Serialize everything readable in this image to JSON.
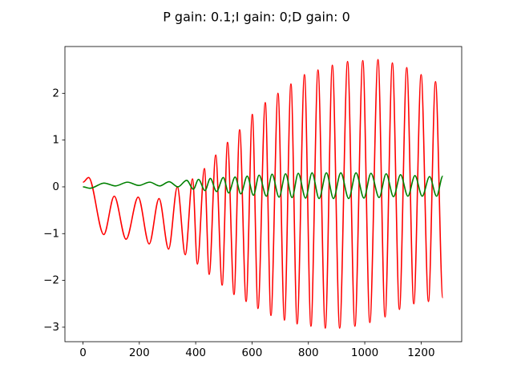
{
  "chart_data": {
    "type": "line",
    "title": "P gain: 0.1;I gain: 0;D gain: 0",
    "xlim": [
      -64,
      1344
    ],
    "ylim": [
      -3.31,
      3.0
    ],
    "xticks": [
      0,
      200,
      400,
      600,
      800,
      1000,
      1200
    ],
    "yticks": [
      {
        "value": -3,
        "label": "−3"
      },
      {
        "value": -2,
        "label": "−2"
      },
      {
        "value": -1,
        "label": "−1"
      },
      0,
      1,
      2
    ],
    "series": [
      {
        "color": "#ff0000",
        "x": [
          0,
          20,
          74,
          111,
          153,
          196,
          235,
          270,
          304,
          335,
          363,
          389,
          406,
          431,
          448,
          471,
          494,
          513,
          536,
          556,
          579,
          601,
          621,
          647,
          667,
          692,
          715,
          738,
          760,
          786,
          809,
          834,
          860,
          885,
          911,
          939,
          965,
          993,
          1018,
          1047,
          1072,
          1098,
          1123,
          1149,
          1174,
          1200,
          1226,
          1251,
          1277
        ],
        "values": [
          0.1,
          0.2,
          -1.02,
          -0.2,
          -1.12,
          -0.22,
          -1.22,
          -0.25,
          -1.33,
          0.0,
          -1.45,
          0.17,
          -1.65,
          0.39,
          -1.87,
          0.68,
          -2.1,
          0.95,
          -2.3,
          1.22,
          -2.45,
          1.55,
          -2.6,
          1.8,
          -2.75,
          2.0,
          -2.85,
          2.2,
          -2.93,
          2.4,
          -2.98,
          2.5,
          -3.02,
          2.6,
          -3.02,
          2.68,
          -2.98,
          2.7,
          -2.9,
          2.72,
          -2.78,
          2.65,
          -2.62,
          2.55,
          -2.5,
          2.4,
          -2.45,
          2.25,
          -2.37
        ]
      },
      {
        "color": "#008000",
        "x": [
          0,
          25,
          75,
          115,
          158,
          198,
          237,
          272,
          306,
          337,
          368,
          392,
          410,
          433,
          452,
          474,
          498,
          517,
          540,
          560,
          583,
          605,
          625,
          651,
          671,
          696,
          719,
          742,
          764,
          790,
          813,
          838,
          864,
          889,
          915,
          943,
          969,
          997,
          1022,
          1051,
          1076,
          1102,
          1127,
          1153,
          1178,
          1204,
          1230,
          1255,
          1277
        ],
        "values": [
          0,
          -0.03,
          0.08,
          0.02,
          0.1,
          0.03,
          0.1,
          0.02,
          0.11,
          0.0,
          0.14,
          -0.05,
          0.16,
          -0.08,
          0.18,
          -0.1,
          0.2,
          -0.13,
          0.21,
          -0.15,
          0.23,
          -0.18,
          0.25,
          -0.2,
          0.27,
          -0.22,
          0.28,
          -0.23,
          0.29,
          -0.24,
          0.3,
          -0.25,
          0.3,
          -0.25,
          0.3,
          -0.25,
          0.3,
          -0.24,
          0.29,
          -0.23,
          0.28,
          -0.21,
          0.26,
          -0.2,
          0.24,
          -0.2,
          0.22,
          -0.2,
          0.23
        ]
      }
    ]
  }
}
